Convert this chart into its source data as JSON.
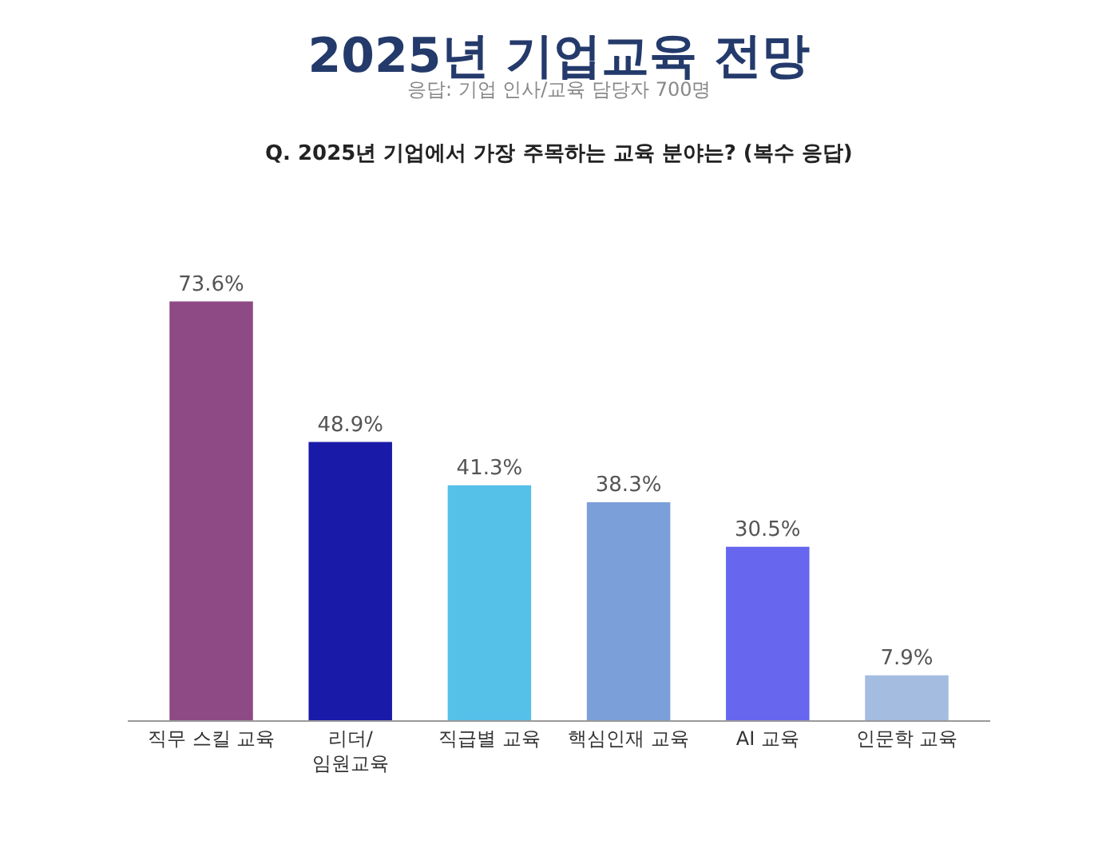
{
  "chart_data": {
    "type": "bar",
    "title": "2025년 기업교육 전망",
    "subtitle": "응답: 기업 인사/교육 담당자 700명",
    "annotations": [
      "Q. 2025년 기업에서 가장 주목하는 교육 분야는? (복수 응답)"
    ],
    "categories": [
      "직무 스킬 교육",
      "리더/\n임원교육",
      "직급별 교육",
      "핵심인재 교육",
      "AI 교육",
      "인문학 교육"
    ],
    "values": [
      73.6,
      48.9,
      41.3,
      38.3,
      30.5,
      7.9
    ],
    "colors": [
      "#8e4a85",
      "#1a1aa8",
      "#55c0e8",
      "#7b9fd8",
      "#6666ee",
      "#a3bce0"
    ],
    "value_labels": [
      "73.6%",
      "48.9%",
      "41.3%",
      "38.3%",
      "30.5%",
      "7.9%"
    ],
    "legend": false
  }
}
